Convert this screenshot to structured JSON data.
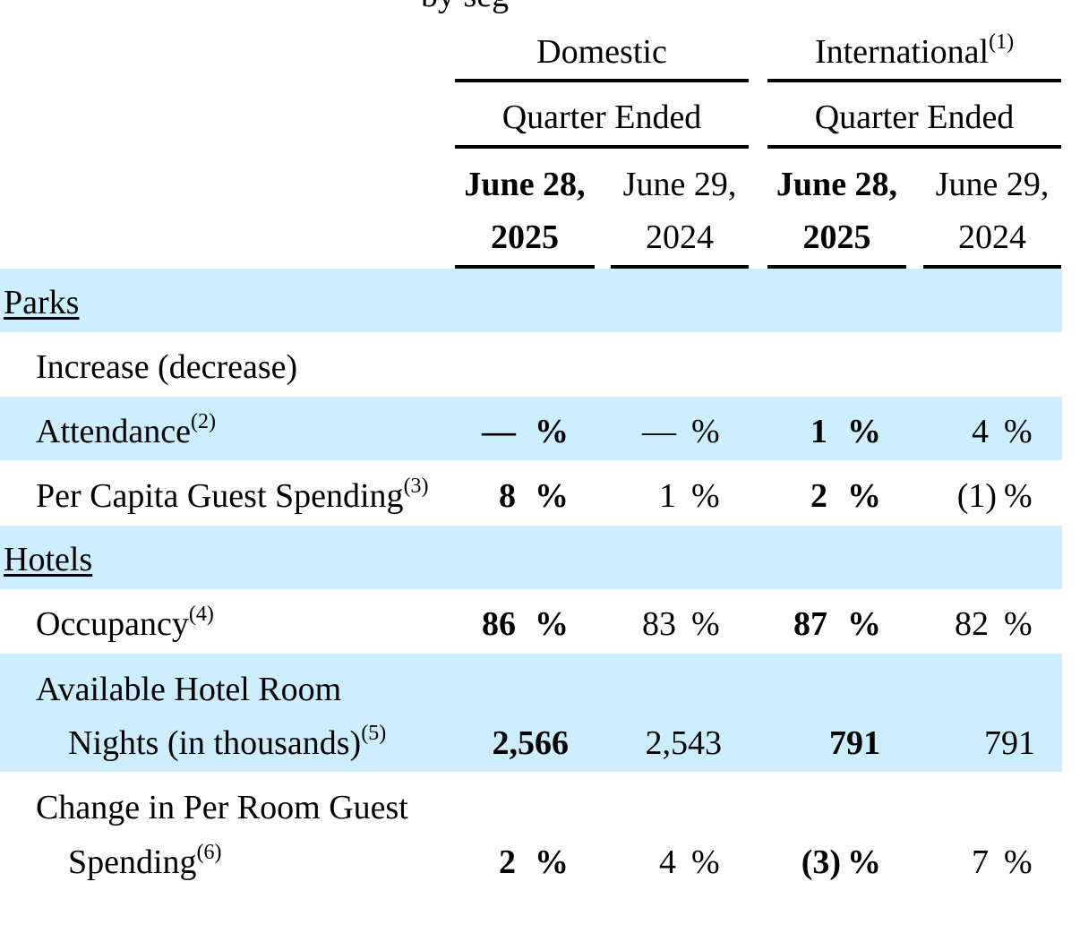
{
  "headers": {
    "cropped_top_text": "by seg",
    "domestic": "Domestic",
    "international": "International",
    "international_note": "(1)",
    "quarter_ended": "Quarter Ended",
    "col1_line1": "June 28,",
    "col1_line2": "2025",
    "col2_line1": "June 29,",
    "col2_line2": "2024",
    "col3_line1": "June 28,",
    "col3_line2": "2025",
    "col4_line1": "June 29,",
    "col4_line2": "2024"
  },
  "sections": {
    "parks": "Parks",
    "hotels": "Hotels"
  },
  "rows": {
    "increase_label": "Increase (decrease)",
    "attendance": {
      "label": "Attendance",
      "note": "(2)",
      "c1": "—",
      "c2": "—",
      "c3": "1",
      "c4": "4"
    },
    "per_capita": {
      "label": "Per Capita Guest Spending",
      "note": "(3)",
      "c1": "8",
      "c2": "1",
      "c3": "2",
      "c4": "(1)"
    },
    "occupancy": {
      "label": "Occupancy",
      "note": "(4)",
      "c1": "86",
      "c2": "83",
      "c3": "87",
      "c4": "82"
    },
    "room_nights": {
      "label_line1": "Available Hotel Room",
      "label_line2": "Nights (in thousands)",
      "note": "(5)",
      "c1": "2,566",
      "c2": "2,543",
      "c3": "791",
      "c4": "791"
    },
    "room_spending": {
      "label_line1": "Change in Per Room Guest",
      "label_line2": "Spending",
      "note": "(6)",
      "c1": "2",
      "c2": "4",
      "c3": "(3)",
      "c4": "7"
    }
  },
  "percent_sign": "%",
  "colors": {
    "band": "#cceeff",
    "rule": "#000000"
  }
}
